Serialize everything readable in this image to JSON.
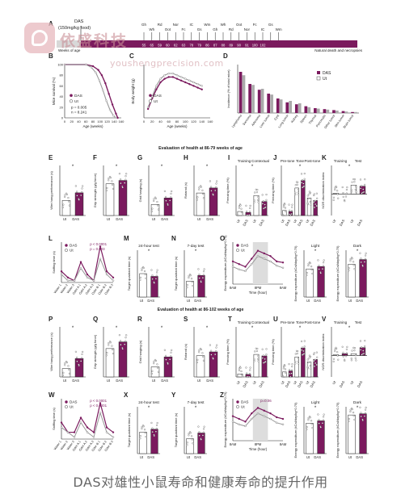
{
  "watermark": {
    "brand": "依盛科技",
    "url": "youshengprecision.com"
  },
  "caption": "DAS对雄性小鼠寿命和健康寿命的提升作用",
  "panel_letters": [
    "A",
    "B",
    "C",
    "D",
    "E",
    "F",
    "G",
    "H",
    "I",
    "J",
    "K",
    "L",
    "M",
    "N",
    "O",
    "P",
    "Q",
    "R",
    "S",
    "T",
    "U",
    "V",
    "W",
    "X",
    "Y",
    "Z"
  ],
  "colors": {
    "das": "#7b1a5e",
    "ut": "#ffffff",
    "ut_stroke": "#444444",
    "ut_gray": "#b0b0b0",
    "bar_light": "#c9a8c0"
  },
  "legend": {
    "das": "DAS",
    "ut": "Ut"
  },
  "timeline": {
    "label_das": "DAS",
    "label_dose": "(150mg/kg food)",
    "label_weeks": "Weeks of age",
    "label_end": "Natural death and necropsies",
    "row_assays": [
      "Gh",
      "Wh",
      "Rd",
      "Oot",
      "Nor",
      "Fc",
      "IC",
      "Gs",
      "Wm",
      "Gh",
      "Wh",
      "Rd",
      "Oot",
      "Nor",
      "Fc",
      "IC",
      "Gs",
      "Wm"
    ],
    "row_weeks": [
      "55",
      "65",
      "59",
      "60",
      "62",
      "63",
      "78",
      "79",
      "86",
      "87",
      "88",
      "89",
      "90",
      "91",
      "100",
      "102"
    ]
  },
  "section_titles": [
    "Evaluation of health at 86-79 weeks of age",
    "Evaluation of health at 86-102 weeks of age"
  ],
  "chart_data": [
    {
      "id": "B",
      "type": "line",
      "ylabel": "Mice survival (%)",
      "xlabel": "Age (weeks)",
      "xlim": [
        0,
        160
      ],
      "ylim": [
        0,
        100
      ],
      "xticks": [
        0,
        20,
        40,
        60,
        80,
        100,
        120,
        140,
        160
      ],
      "yticks": [
        0,
        20,
        40,
        60,
        80,
        100
      ],
      "stats": [
        "p = 0.005",
        "n = 8.241"
      ],
      "series": [
        {
          "name": "DAS",
          "x": [
            0,
            60,
            80,
            95,
            105,
            115,
            125,
            135,
            145,
            150
          ],
          "y": [
            100,
            100,
            97,
            90,
            80,
            65,
            45,
            25,
            8,
            0
          ]
        },
        {
          "name": "Ut",
          "x": [
            0,
            60,
            75,
            88,
            98,
            108,
            118,
            128,
            138,
            145
          ],
          "y": [
            100,
            100,
            95,
            85,
            70,
            52,
            32,
            15,
            4,
            0
          ]
        }
      ]
    },
    {
      "id": "C",
      "type": "line",
      "ylabel": "Body weight (g)",
      "xlabel": "Age (weeks)",
      "xlim": [
        0,
        160
      ],
      "ylim": [
        20,
        50
      ],
      "xticks": [
        0,
        20,
        40,
        60,
        80,
        100,
        120,
        140,
        160
      ],
      "series": [
        {
          "name": "DAS",
          "x": [
            10,
            20,
            30,
            40,
            50,
            60,
            70,
            80,
            90,
            100,
            110,
            120,
            130,
            140
          ],
          "y": [
            25,
            31,
            36,
            40,
            42,
            43,
            43,
            42,
            41,
            40,
            39,
            38,
            37,
            36
          ]
        },
        {
          "name": "Ut",
          "x": [
            10,
            20,
            30,
            40,
            50,
            60,
            70,
            80,
            90,
            100,
            110,
            120,
            130,
            140
          ],
          "y": [
            26,
            32,
            38,
            42,
            44,
            45,
            45,
            44,
            43,
            42,
            41,
            40,
            39,
            38
          ]
        }
      ]
    },
    {
      "id": "D",
      "type": "bar",
      "ylabel": "Incidence (% of total mice)",
      "ylim": [
        0,
        100
      ],
      "categories": [
        "Lymphoma",
        "Sarcoma",
        "Adenoma",
        "Liver tumor",
        "Cyst",
        "Lung tumor",
        "Kidney",
        "Spleen",
        "Thymus",
        "Pancreatic",
        "Other tumor",
        "Skin tumor",
        "Brain tumor"
      ],
      "series": [
        {
          "name": "DAS",
          "values": [
            85,
            60,
            48,
            40,
            30,
            22,
            18,
            14,
            10,
            8,
            6,
            4,
            2
          ]
        },
        {
          "name": "Ut",
          "values": [
            78,
            58,
            50,
            38,
            28,
            25,
            20,
            12,
            9,
            7,
            5,
            3,
            2
          ]
        }
      ]
    },
    {
      "id": "E",
      "type": "bar",
      "ylabel": "Wire hang performance (s)",
      "categories": [
        "Ut",
        "DAS"
      ],
      "values": [
        45,
        68
      ],
      "ylim": [
        0,
        150
      ]
    },
    {
      "id": "F",
      "type": "bar",
      "ylabel": "Grip strength (g/g force)",
      "categories": [
        "Ut",
        "DAS"
      ],
      "values": [
        19,
        21
      ],
      "ylim": [
        0,
        30
      ]
    },
    {
      "id": "G",
      "type": "bar",
      "ylabel": "Grid hanging (s)",
      "categories": [
        "Ut",
        "DAS"
      ],
      "values": [
        22,
        35
      ],
      "ylim": [
        0,
        100
      ]
    },
    {
      "id": "H",
      "type": "bar",
      "ylabel": "Rotarod (s)",
      "categories": [
        "Ut",
        "DAS"
      ],
      "values": [
        180,
        220
      ],
      "ylim": [
        0,
        400
      ]
    },
    {
      "id": "I",
      "type": "bar",
      "ylabel": "Freezing time (%)",
      "categories": [
        "Ut",
        "DAS",
        "Ut",
        "DAS"
      ],
      "groups": [
        "Training",
        "Contextual"
      ],
      "values": [
        8,
        6,
        40,
        28
      ],
      "ylim": [
        0,
        100
      ]
    },
    {
      "id": "J",
      "type": "bar",
      "ylabel": "Freezing time (%)",
      "categories": [
        "Ut",
        "DAS",
        "Ut",
        "DAS",
        "Ut",
        "DAS"
      ],
      "groups": [
        "Pre-tone",
        "Tone",
        "Post-tone"
      ],
      "values": [
        10,
        8,
        55,
        70,
        35,
        30
      ],
      "ylim": [
        0,
        100
      ]
    },
    {
      "id": "K",
      "type": "bar",
      "ylabel": "NOR discrimination index",
      "categories": [
        "Ut",
        "DAS",
        "Ut",
        "DAS"
      ],
      "groups": [
        "Training",
        "Test"
      ],
      "values": [
        0.02,
        0.0,
        0.25,
        0.22
      ],
      "ylim": [
        -0.6,
        0.8
      ]
    },
    {
      "id": "L",
      "type": "line",
      "ylabel": "Sniffing time (s)",
      "categories": [
        "Water 1",
        "Water 2",
        "Water 3",
        "Odor A 1",
        "Odor A 2",
        "Odor A 3",
        "Odor B 1",
        "Odor B 2",
        "Odor B 3"
      ],
      "stats": [
        "p < 0.0001",
        "p = 0.003"
      ],
      "series": [
        {
          "name": "DAS",
          "values": [
            6,
            4,
            3,
            9,
            5,
            3,
            14,
            6,
            4
          ]
        },
        {
          "name": "Ut",
          "values": [
            5,
            3,
            3,
            7,
            4,
            3,
            10,
            5,
            3
          ]
        }
      ]
    },
    {
      "id": "M",
      "type": "bar",
      "title": "24-hour test",
      "ylabel": "Target quadrant time (s)",
      "categories": [
        "Ut",
        "DAS"
      ],
      "values": [
        25,
        22
      ],
      "ylim": [
        0,
        50
      ]
    },
    {
      "id": "N",
      "type": "bar",
      "title": "7-day test",
      "ylabel": "Target quadrant time (s)",
      "categories": [
        "Ut",
        "DAS"
      ],
      "values": [
        17,
        23
      ],
      "ylim": [
        0,
        50
      ]
    },
    {
      "id": "O",
      "type": "line",
      "ylabel": "Energy expenditure (kCal/day/kg^0.75)",
      "xlabel": "Time (hour)",
      "xticks": [
        "8AM",
        "8PM",
        "8AM"
      ],
      "series": [
        {
          "name": "DAS",
          "values": [
            140,
            135,
            130,
            145,
            160,
            155,
            150,
            140,
            138
          ]
        },
        {
          "name": "Ut",
          "values": [
            130,
            125,
            122,
            135,
            150,
            145,
            140,
            132,
            128
          ]
        }
      ]
    },
    {
      "id": "O-light",
      "type": "bar",
      "title": "Light",
      "ylabel": "Energy expenditure (kCal/day/kg^0.75)",
      "categories": [
        "Ut",
        "DAS"
      ],
      "values": [
        120,
        130
      ],
      "ylim": [
        0,
        200
      ]
    },
    {
      "id": "O-dark",
      "type": "bar",
      "title": "Dark",
      "ylabel": "Energy expenditure (kCal/day/kg^0.75)",
      "categories": [
        "Ut",
        "DAS"
      ],
      "values": [
        140,
        160
      ],
      "ylim": [
        0,
        200
      ]
    },
    {
      "id": "P",
      "type": "bar",
      "ylabel": "Wire hang performance (s)",
      "categories": [
        "Ut",
        "DAS"
      ],
      "values": [
        25,
        55
      ],
      "ylim": [
        0,
        150
      ]
    },
    {
      "id": "Q",
      "type": "bar",
      "ylabel": "Grip strength (g/g force)",
      "categories": [
        "Ut",
        "DAS"
      ],
      "values": [
        17,
        21
      ],
      "ylim": [
        0,
        30
      ]
    },
    {
      "id": "R",
      "type": "bar",
      "ylabel": "Grid hanging (s)",
      "categories": [
        "Ut",
        "DAS"
      ],
      "values": [
        20,
        40
      ],
      "ylim": [
        0,
        100
      ]
    },
    {
      "id": "S",
      "type": "bar",
      "ylabel": "Rotarod (s)",
      "categories": [
        "Ut",
        "DAS"
      ],
      "values": [
        170,
        200
      ],
      "ylim": [
        0,
        400
      ]
    },
    {
      "id": "T",
      "type": "bar",
      "ylabel": "Freezing time (%)",
      "categories": [
        "Ut",
        "DAS",
        "Ut",
        "DAS"
      ],
      "groups": [
        "Training",
        "Contextual"
      ],
      "values": [
        6,
        5,
        45,
        42
      ],
      "ylim": [
        0,
        100
      ]
    },
    {
      "id": "U",
      "type": "bar",
      "ylabel": "Freezing time (%)",
      "categories": [
        "Ut",
        "DAS",
        "Ut",
        "DAS",
        "Ut",
        "DAS"
      ],
      "groups": [
        "Pre-tone",
        "Tone",
        "Post-tone"
      ],
      "values": [
        10,
        12,
        40,
        58,
        30,
        35
      ],
      "ylim": [
        0,
        100
      ]
    },
    {
      "id": "V",
      "type": "bar",
      "ylabel": "NOR discrimination index",
      "categories": [
        "Ut",
        "DAS",
        "Ut",
        "DAS"
      ],
      "groups": [
        "Training",
        "Test"
      ],
      "values": [
        0.02,
        0.05,
        0.05,
        0.22
      ],
      "ylim": [
        -0.6,
        0.8
      ]
    },
    {
      "id": "W",
      "type": "line",
      "ylabel": "Sniffing time (s)",
      "categories": [
        "Water 1",
        "Water 2",
        "Water 3",
        "Odor A 1",
        "Odor A 2",
        "Odor A 3",
        "Odor B 1",
        "Odor B 2",
        "Odor B 3"
      ],
      "stats": [
        "p < 0.0001",
        "p < 0.0001"
      ],
      "series": [
        {
          "name": "DAS",
          "values": [
            5,
            3,
            3,
            6,
            4,
            3,
            9,
            4,
            3
          ]
        },
        {
          "name": "Ut",
          "values": [
            4,
            3,
            2,
            5,
            3,
            2,
            7,
            3,
            2
          ]
        }
      ]
    },
    {
      "id": "X",
      "type": "bar",
      "title": "24-hour test",
      "ylabel": "Target quadrant time (s)",
      "categories": [
        "Ut",
        "DAS"
      ],
      "values": [
        23,
        26
      ],
      "ylim": [
        0,
        50
      ]
    },
    {
      "id": "Y",
      "type": "bar",
      "title": "7-day test",
      "ylabel": "Target quadrant time (s)",
      "categories": [
        "Ut",
        "DAS"
      ],
      "values": [
        16,
        22
      ],
      "ylim": [
        0,
        50
      ]
    },
    {
      "id": "Z",
      "type": "line",
      "ylabel": "Energy expenditure (kCal/day/kg^0.75)",
      "xlabel": "Time (hour)",
      "xticks": [
        "8AM",
        "8PM",
        "8AM"
      ],
      "stats": [
        "p=0.06"
      ],
      "series": [
        {
          "name": "DAS",
          "values": [
            150,
            145,
            140,
            155,
            165,
            160,
            155,
            148,
            145
          ]
        },
        {
          "name": "Ut",
          "values": [
            140,
            135,
            132,
            145,
            155,
            150,
            145,
            138,
            135
          ]
        }
      ]
    },
    {
      "id": "Z-light",
      "type": "bar",
      "title": "Light",
      "ylabel": "Energy expenditure (kCal/day/kg^0.75)",
      "categories": [
        "Ut",
        "DAS"
      ],
      "values": [
        130,
        140
      ],
      "ylim": [
        0,
        200
      ]
    },
    {
      "id": "Z-dark",
      "type": "bar",
      "title": "Dark",
      "ylabel": "Energy expenditure (kCal/day/kg^0.75)",
      "categories": [
        "Ut",
        "DAS"
      ],
      "values": [
        165,
        170
      ],
      "ylim": [
        0,
        200
      ]
    }
  ]
}
